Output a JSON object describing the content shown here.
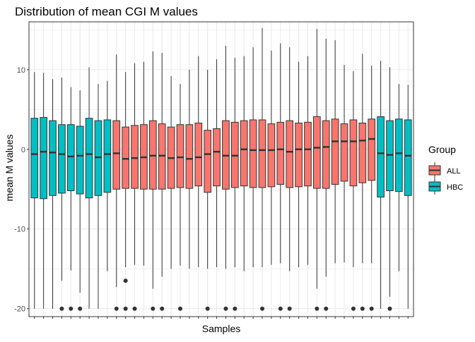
{
  "colors": {
    "ALL": "#F8766D",
    "HBC": "#00BFC4",
    "grid": "#EBEBEB",
    "box_line": "#333333",
    "panel_border": "#333333",
    "text": "#000000",
    "tick_text": "#4D4D4D"
  },
  "chart_data": {
    "type": "boxplot",
    "title": "Distribution of mean CGI M values",
    "xlabel": "Samples",
    "ylabel": "mean M values",
    "ylim": [
      -21,
      16
    ],
    "yticks": [
      10,
      0,
      -10,
      -20
    ],
    "grid": true,
    "legend": {
      "title": "Group",
      "position": "right",
      "entries": [
        {
          "name": "ALL",
          "color": "#F8766D"
        },
        {
          "name": "HBC",
          "color": "#00BFC4"
        }
      ]
    },
    "samples": [
      {
        "group": "HBC",
        "min": -20,
        "q1": -6.1,
        "median": -0.6,
        "q3": 3.9,
        "max": 9.7,
        "outliers": []
      },
      {
        "group": "HBC",
        "min": -20,
        "q1": -6.2,
        "median": -0.3,
        "q3": 4.0,
        "max": 9.6,
        "outliers": []
      },
      {
        "group": "HBC",
        "min": -20,
        "q1": -5.8,
        "median": -0.4,
        "q3": 3.6,
        "max": 8.8,
        "outliers": []
      },
      {
        "group": "HBC",
        "min": -16.5,
        "q1": -5.5,
        "median": -0.6,
        "q3": 3.1,
        "max": 9.0,
        "outliers": [
          -20
        ]
      },
      {
        "group": "HBC",
        "min": -15.2,
        "q1": -5.2,
        "median": -0.9,
        "q3": 3.1,
        "max": 7.8,
        "outliers": [
          -20
        ]
      },
      {
        "group": "HBC",
        "min": -18.0,
        "q1": -5.6,
        "median": -0.8,
        "q3": 2.9,
        "max": 7.4,
        "outliers": [
          -20
        ]
      },
      {
        "group": "HBC",
        "min": -20,
        "q1": -6.1,
        "median": -0.6,
        "q3": 3.9,
        "max": 10.3,
        "outliers": []
      },
      {
        "group": "HBC",
        "min": -20,
        "q1": -5.8,
        "median": -1.0,
        "q3": 3.6,
        "max": 8.2,
        "outliers": []
      },
      {
        "group": "HBC",
        "min": -15.3,
        "q1": -5.4,
        "median": -0.6,
        "q3": 3.7,
        "max": 8.6,
        "outliers": []
      },
      {
        "group": "ALL",
        "min": -17.3,
        "q1": -5.0,
        "median": -0.5,
        "q3": 3.6,
        "max": 11.9,
        "outliers": [
          -20
        ]
      },
      {
        "group": "ALL",
        "min": -14.8,
        "q1": -4.9,
        "median": -1.2,
        "q3": 2.8,
        "max": 9.7,
        "outliers": [
          -16.5,
          -20
        ]
      },
      {
        "group": "ALL",
        "min": -14.5,
        "q1": -4.9,
        "median": -1.1,
        "q3": 3.0,
        "max": 10.8,
        "outliers": [
          -20
        ]
      },
      {
        "group": "ALL",
        "min": -14.6,
        "q1": -5.0,
        "median": -1.0,
        "q3": 3.1,
        "max": 11.0,
        "outliers": []
      },
      {
        "group": "ALL",
        "min": -17.5,
        "q1": -5.0,
        "median": -0.8,
        "q3": 3.6,
        "max": 12.3,
        "outliers": [
          -20
        ]
      },
      {
        "group": "ALL",
        "min": -16.0,
        "q1": -5.0,
        "median": -0.8,
        "q3": 3.2,
        "max": 12.1,
        "outliers": [
          -20
        ]
      },
      {
        "group": "ALL",
        "min": -15.0,
        "q1": -4.9,
        "median": -1.1,
        "q3": 2.8,
        "max": 9.2,
        "outliers": []
      },
      {
        "group": "ALL",
        "min": -14.6,
        "q1": -4.8,
        "median": -1.0,
        "q3": 3.1,
        "max": 8.2,
        "outliers": [
          -20
        ]
      },
      {
        "group": "ALL",
        "min": -15.0,
        "q1": -4.9,
        "median": -1.2,
        "q3": 3.1,
        "max": 10.0,
        "outliers": []
      },
      {
        "group": "ALL",
        "min": -14.8,
        "q1": -4.6,
        "median": -1.0,
        "q3": 3.3,
        "max": 11.7,
        "outliers": []
      },
      {
        "group": "ALL",
        "min": -15.0,
        "q1": -5.4,
        "median": -0.6,
        "q3": 2.4,
        "max": 10.0,
        "outliers": [
          -20
        ]
      },
      {
        "group": "ALL",
        "min": -14.8,
        "q1": -4.6,
        "median": -0.3,
        "q3": 2.6,
        "max": 11.3,
        "outliers": []
      },
      {
        "group": "ALL",
        "min": -15.0,
        "q1": -5.0,
        "median": -0.8,
        "q3": 3.6,
        "max": 13.0,
        "outliers": [
          -20
        ]
      },
      {
        "group": "ALL",
        "min": -14.8,
        "q1": -4.8,
        "median": -0.8,
        "q3": 3.4,
        "max": 11.5,
        "outliers": [
          -20
        ]
      },
      {
        "group": "ALL",
        "min": -15.3,
        "q1": -4.6,
        "median": 0.0,
        "q3": 3.6,
        "max": 11.7,
        "outliers": []
      },
      {
        "group": "ALL",
        "min": -14.8,
        "q1": -4.8,
        "median": -0.1,
        "q3": 3.7,
        "max": 12.8,
        "outliers": []
      },
      {
        "group": "ALL",
        "min": -14.8,
        "q1": -4.8,
        "median": -0.1,
        "q3": 3.7,
        "max": 15.2,
        "outliers": [
          -20
        ]
      },
      {
        "group": "ALL",
        "min": -14.5,
        "q1": -4.7,
        "median": -0.1,
        "q3": 3.2,
        "max": 12.4,
        "outliers": []
      },
      {
        "group": "ALL",
        "min": -14.3,
        "q1": -4.4,
        "median": 0.0,
        "q3": 3.4,
        "max": 13.3,
        "outliers": [
          -20
        ]
      },
      {
        "group": "ALL",
        "min": -15.3,
        "q1": -4.8,
        "median": -0.3,
        "q3": 3.6,
        "max": 12.8,
        "outliers": [
          -20
        ]
      },
      {
        "group": "ALL",
        "min": -14.8,
        "q1": -4.7,
        "median": 0.0,
        "q3": 3.3,
        "max": 11.0,
        "outliers": []
      },
      {
        "group": "ALL",
        "min": -14.5,
        "q1": -4.6,
        "median": 0.0,
        "q3": 3.4,
        "max": 11.7,
        "outliers": []
      },
      {
        "group": "ALL",
        "min": -17.5,
        "q1": -4.9,
        "median": 0.2,
        "q3": 4.1,
        "max": 15.1,
        "outliers": [
          -20
        ]
      },
      {
        "group": "ALL",
        "min": -16.0,
        "q1": -4.9,
        "median": 0.3,
        "q3": 3.6,
        "max": 13.9,
        "outliers": [
          -20
        ]
      },
      {
        "group": "ALL",
        "min": -14.3,
        "q1": -4.4,
        "median": 1.0,
        "q3": 3.8,
        "max": 13.7,
        "outliers": []
      },
      {
        "group": "ALL",
        "min": -14.2,
        "q1": -4.0,
        "median": 1.0,
        "q3": 3.2,
        "max": 10.6,
        "outliers": []
      },
      {
        "group": "ALL",
        "min": -14.8,
        "q1": -4.6,
        "median": 1.0,
        "q3": 3.7,
        "max": 9.8,
        "outliers": [
          -20
        ]
      },
      {
        "group": "ALL",
        "min": -14.3,
        "q1": -4.2,
        "median": 1.1,
        "q3": 3.3,
        "max": 12.0,
        "outliers": [
          -20
        ]
      },
      {
        "group": "ALL",
        "min": -14.3,
        "q1": -3.9,
        "median": 1.3,
        "q3": 3.8,
        "max": 10.5,
        "outliers": [
          -20
        ]
      },
      {
        "group": "HBC",
        "min": -20,
        "q1": -6.0,
        "median": -0.5,
        "q3": 4.1,
        "max": 11.1,
        "outliers": []
      },
      {
        "group": "HBC",
        "min": -18.5,
        "q1": -5.2,
        "median": -0.7,
        "q3": 3.6,
        "max": 10.3,
        "outliers": [
          -20
        ]
      },
      {
        "group": "HBC",
        "min": -15.3,
        "q1": -5.3,
        "median": -0.5,
        "q3": 3.8,
        "max": 8.2,
        "outliers": []
      },
      {
        "group": "HBC",
        "min": -20,
        "q1": -5.8,
        "median": -0.8,
        "q3": 3.7,
        "max": 8.1,
        "outliers": []
      }
    ]
  }
}
